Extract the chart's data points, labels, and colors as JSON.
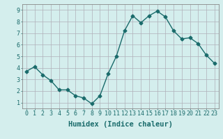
{
  "x": [
    0,
    1,
    2,
    3,
    4,
    5,
    6,
    7,
    8,
    9,
    10,
    11,
    12,
    13,
    14,
    15,
    16,
    17,
    18,
    19,
    20,
    21,
    22,
    23
  ],
  "y": [
    3.7,
    4.1,
    3.4,
    2.9,
    2.1,
    2.1,
    1.6,
    1.4,
    0.9,
    1.6,
    3.5,
    5.0,
    7.2,
    8.5,
    7.9,
    8.5,
    8.9,
    8.4,
    7.2,
    6.5,
    6.6,
    6.1,
    5.1,
    4.4
  ],
  "xlabel": "Humidex (Indice chaleur)",
  "ylabel": "",
  "xlim": [
    -0.5,
    23.5
  ],
  "ylim": [
    0.5,
    9.5
  ],
  "yticks": [
    1,
    2,
    3,
    4,
    5,
    6,
    7,
    8,
    9
  ],
  "xticks": [
    0,
    1,
    2,
    3,
    4,
    5,
    6,
    7,
    8,
    9,
    10,
    11,
    12,
    13,
    14,
    15,
    16,
    17,
    18,
    19,
    20,
    21,
    22,
    23
  ],
  "line_color": "#1a6b6b",
  "marker": "D",
  "marker_size": 2.5,
  "bg_color": "#d4eeed",
  "grid_color": "#b0b0b8",
  "axis_color": "#888888",
  "tick_color": "#1a6b6b",
  "label_color": "#1a6b6b",
  "font_size_ticks": 6,
  "font_size_xlabel": 7.5
}
